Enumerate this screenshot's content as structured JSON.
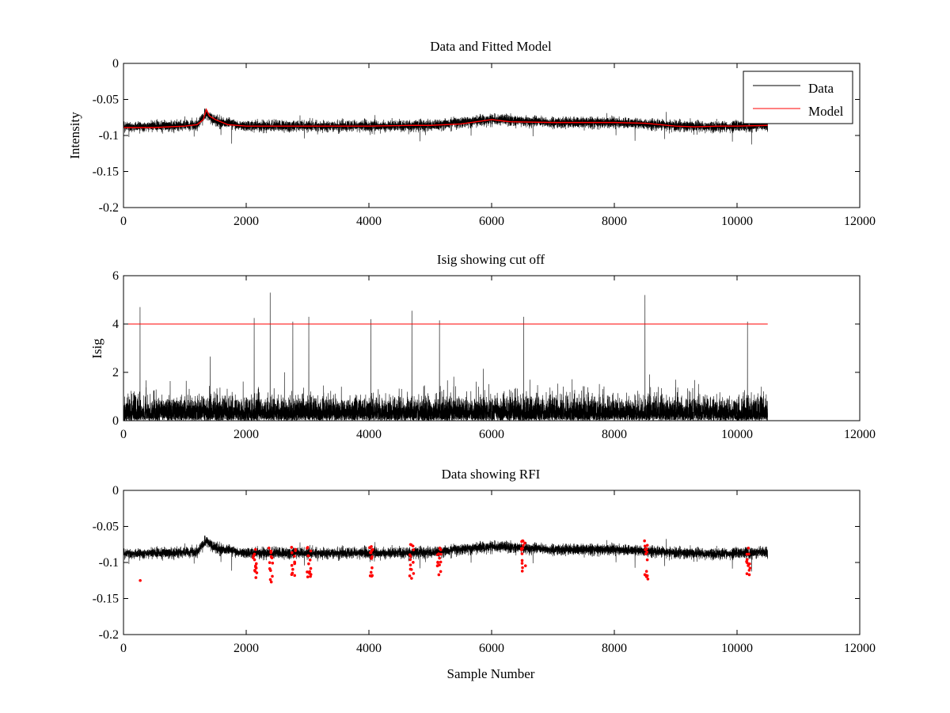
{
  "chart_data": [
    {
      "type": "line",
      "title": "Data and Fitted Model",
      "xlabel": "",
      "ylabel": "Intensity",
      "xlim": [
        0,
        12000
      ],
      "ylim": [
        -0.2,
        0
      ],
      "xticks": [
        0,
        2000,
        4000,
        6000,
        8000,
        10000,
        12000
      ],
      "xtick_labels": [
        "0",
        "2000",
        "4000",
        "6000",
        "8000",
        "10000",
        "12000"
      ],
      "yticks": [
        0,
        -0.05,
        -0.1,
        -0.15,
        -0.2
      ],
      "ytick_labels": [
        "0",
        "-0.05",
        "-0.1",
        "-0.15",
        "-0.2"
      ],
      "grid": false,
      "legend": {
        "placement": "top-right",
        "entries": [
          "Data",
          "Model"
        ]
      },
      "series": [
        {
          "name": "Data",
          "color": "#000000",
          "sample_count": 10500,
          "x": [
            0,
            1000,
            1200,
            1350,
            1500,
            2000,
            3000,
            4000,
            5000,
            6000,
            7000,
            8000,
            9000,
            9500,
            10000,
            10500
          ],
          "baseline": [
            -0.088,
            -0.086,
            -0.085,
            -0.07,
            -0.08,
            -0.087,
            -0.087,
            -0.087,
            -0.086,
            -0.078,
            -0.082,
            -0.082,
            -0.086,
            -0.088,
            -0.087,
            -0.086
          ],
          "noise_amplitude": 0.006,
          "min": -0.125,
          "max": -0.048
        },
        {
          "name": "Model",
          "color": "#ff0000",
          "x": [
            0,
            500,
            1000,
            1200,
            1300,
            1350,
            1400,
            1500,
            1700,
            2000,
            3000,
            4000,
            4700,
            5000,
            5500,
            6000,
            6300,
            7000,
            8000,
            8500,
            9000,
            9300,
            9700,
            10000,
            10500
          ],
          "y": [
            -0.089,
            -0.089,
            -0.087,
            -0.085,
            -0.078,
            -0.064,
            -0.073,
            -0.078,
            -0.085,
            -0.087,
            -0.087,
            -0.087,
            -0.086,
            -0.086,
            -0.084,
            -0.078,
            -0.081,
            -0.082,
            -0.082,
            -0.083,
            -0.087,
            -0.088,
            -0.087,
            -0.087,
            -0.086
          ]
        }
      ]
    },
    {
      "type": "line",
      "title": "Isig showing cut off",
      "xlabel": "",
      "ylabel": "Isig",
      "xlim": [
        0,
        12000
      ],
      "ylim": [
        0,
        6
      ],
      "xticks": [
        0,
        2000,
        4000,
        6000,
        8000,
        10000,
        12000
      ],
      "xtick_labels": [
        "0",
        "2000",
        "4000",
        "6000",
        "8000",
        "10000",
        "12000"
      ],
      "yticks": [
        0,
        2,
        4,
        6
      ],
      "ytick_labels": [
        "0",
        "2",
        "4",
        "6"
      ],
      "grid": false,
      "series": [
        {
          "name": "Isig",
          "color": "#000000",
          "sample_count": 10500,
          "typical_range": [
            0,
            2.5
          ],
          "peaks": [
            {
              "x": 270,
              "y": 4.7
            },
            {
              "x": 2130,
              "y": 4.25
            },
            {
              "x": 2390,
              "y": 5.3
            },
            {
              "x": 2760,
              "y": 4.1
            },
            {
              "x": 3020,
              "y": 4.3
            },
            {
              "x": 4030,
              "y": 4.2
            },
            {
              "x": 4700,
              "y": 4.55
            },
            {
              "x": 5150,
              "y": 4.15
            },
            {
              "x": 6520,
              "y": 4.3
            },
            {
              "x": 8500,
              "y": 5.2
            },
            {
              "x": 10170,
              "y": 4.1
            }
          ]
        },
        {
          "name": "cut off",
          "color": "#ff0000",
          "x": [
            0,
            10500
          ],
          "y": [
            4,
            4
          ]
        }
      ]
    },
    {
      "type": "line",
      "title": "Data showing RFI",
      "xlabel": "Sample Number",
      "ylabel": "",
      "xlim": [
        0,
        12000
      ],
      "ylim": [
        -0.2,
        0
      ],
      "xticks": [
        0,
        2000,
        4000,
        6000,
        8000,
        10000,
        12000
      ],
      "xtick_labels": [
        "0",
        "2000",
        "4000",
        "6000",
        "8000",
        "10000",
        "12000"
      ],
      "yticks": [
        0,
        -0.05,
        -0.1,
        -0.15,
        -0.2
      ],
      "ytick_labels": [
        "0",
        "-0.05",
        "-0.1",
        "-0.15",
        "-0.2"
      ],
      "grid": false,
      "series": [
        {
          "name": "Data",
          "color": "#000000",
          "sample_count": 10500,
          "x": [
            0,
            1000,
            1200,
            1350,
            1500,
            2000,
            3000,
            4000,
            5000,
            6000,
            7000,
            8000,
            9000,
            9500,
            10000,
            10500
          ],
          "baseline": [
            -0.088,
            -0.086,
            -0.085,
            -0.07,
            -0.08,
            -0.087,
            -0.087,
            -0.087,
            -0.086,
            -0.078,
            -0.082,
            -0.082,
            -0.086,
            -0.088,
            -0.087,
            -0.086
          ],
          "noise_amplitude": 0.006
        },
        {
          "name": "RFI",
          "color": "#ff0000",
          "marker": "dot",
          "clusters": [
            {
              "x": 270,
              "ymin": -0.125,
              "ymax": -0.125
            },
            {
              "x": 2140,
              "ymin": -0.121,
              "ymax": -0.082
            },
            {
              "x": 2400,
              "ymin": -0.127,
              "ymax": -0.08
            },
            {
              "x": 2770,
              "ymin": -0.118,
              "ymax": -0.079
            },
            {
              "x": 3020,
              "ymin": -0.12,
              "ymax": -0.079
            },
            {
              "x": 4030,
              "ymin": -0.119,
              "ymax": -0.078
            },
            {
              "x": 4700,
              "ymin": -0.122,
              "ymax": -0.075
            },
            {
              "x": 5150,
              "ymin": -0.117,
              "ymax": -0.08
            },
            {
              "x": 6520,
              "ymin": -0.112,
              "ymax": -0.07
            },
            {
              "x": 8520,
              "ymin": -0.123,
              "ymax": -0.07
            },
            {
              "x": 10180,
              "ymin": -0.117,
              "ymax": -0.08
            }
          ]
        }
      ]
    }
  ]
}
